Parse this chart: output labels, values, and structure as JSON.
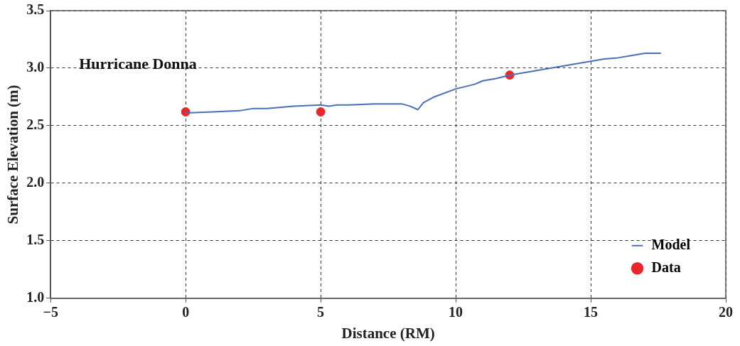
{
  "chart_data": {
    "type": "line",
    "xlabel": "Distance (RM)",
    "ylabel": "Surface Elevation (m)",
    "annotations": [
      "Hurricane Donna"
    ],
    "xlim": [
      -5,
      20
    ],
    "xticks": [
      -5,
      0,
      5,
      10,
      15,
      20
    ],
    "ylim": [
      1.0,
      3.5
    ],
    "yticks": [
      {
        "value": 1.0,
        "label": "1.0"
      },
      1.5,
      {
        "value": 2.0,
        "label": "2.0"
      },
      2.5,
      {
        "value": 3.0,
        "label": "3.0"
      },
      3.5
    ],
    "grid": true,
    "legend": "bottom right",
    "series": [
      {
        "name": "Model",
        "type": "line",
        "color": "#4a6fb5",
        "marker": "none",
        "x": [
          0,
          1,
          2,
          2.5,
          3,
          4,
          5,
          5.3,
          5.6,
          6,
          7,
          7.5,
          8,
          8.3,
          8.6,
          8.8,
          9.2,
          10,
          10.7,
          11,
          11.5,
          12,
          13,
          13.5,
          14,
          15,
          15.5,
          16,
          16.5,
          17,
          17.6
        ],
        "values": [
          2.61,
          2.62,
          2.63,
          2.65,
          2.65,
          2.67,
          2.68,
          2.67,
          2.68,
          2.68,
          2.69,
          2.69,
          2.69,
          2.67,
          2.64,
          2.7,
          2.75,
          2.82,
          2.86,
          2.89,
          2.91,
          2.94,
          2.98,
          3.0,
          3.02,
          3.06,
          3.08,
          3.09,
          3.11,
          3.13,
          3.13
        ]
      },
      {
        "name": "Data",
        "type": "scatter",
        "color": "#e8262e",
        "marker": "circle",
        "x": [
          0,
          5,
          12
        ],
        "values": [
          2.62,
          2.62,
          2.94
        ]
      }
    ]
  }
}
